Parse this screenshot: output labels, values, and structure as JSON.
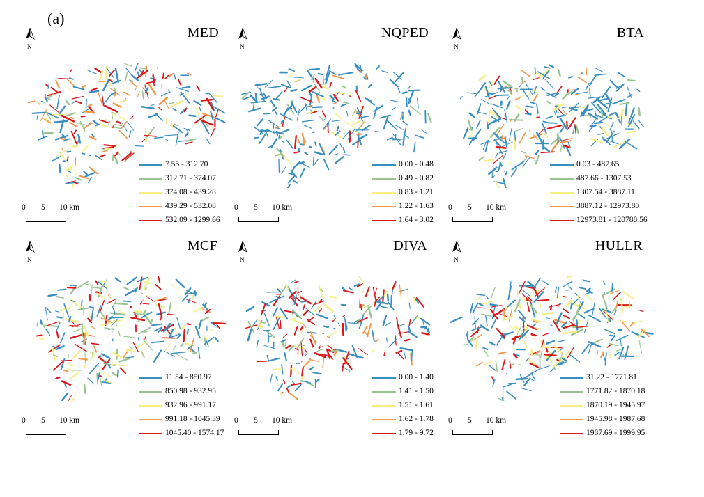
{
  "figure_label": "(a)",
  "north_label": "N",
  "scale": {
    "t0": "0",
    "t1": "5",
    "t2": "10 km"
  },
  "colors": [
    "#3a8fc1",
    "#9ac48f",
    "#f4ee83",
    "#f19a4e",
    "#d7191c"
  ],
  "panels": [
    {
      "title": "MED",
      "classes": [
        "7.55 - 312.70",
        "312.71 - 374.07",
        "374.08 - 439.28",
        "439.29 - 532.08",
        "532.09 - 1299.66"
      ]
    },
    {
      "title": "NQPED",
      "classes": [
        "0.00 - 0.48",
        "0.49 - 0.82",
        "0.83 - 1.21",
        "1.22 - 1.63",
        "1.64 - 3.02"
      ]
    },
    {
      "title": "BTA",
      "classes": [
        "0.03 - 487.65",
        "487.66 - 1307.53",
        "1307.54 - 3887.11",
        "3887.12 - 12973.80",
        "12973.81 - 120788.56"
      ]
    },
    {
      "title": "MCF",
      "classes": [
        "11.54 - 850.97",
        "850.98 - 932.95",
        "932.96 - 991.17",
        "991.18 - 1045.39",
        "1045.40 - 1574.17"
      ]
    },
    {
      "title": "DIVA",
      "classes": [
        "0.00 - 1.40",
        "1.41 - 1.50",
        "1.51 - 1.61",
        "1.62 - 1.78",
        "1.79 - 9.72"
      ]
    },
    {
      "title": "HULLR",
      "classes": [
        "31.22 - 1771.81",
        "1771.82 - 1870.18",
        "1870.19 - 1945.97",
        "1945.98 - 1987.68",
        "1987.69 - 1999.95"
      ]
    }
  ]
}
